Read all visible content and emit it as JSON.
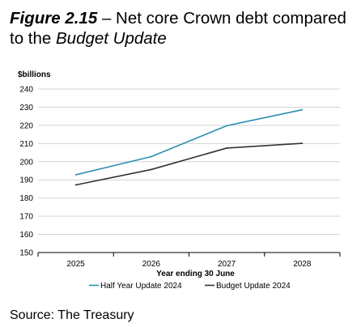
{
  "title": {
    "figure_label": "Figure 2.15",
    "separator": " – Net core Crown debt compared to the ",
    "emphasis": "Budget Update"
  },
  "source": "Source: The Treasury",
  "chart_data": {
    "type": "line",
    "ylabel": "$billions",
    "xlabel": "Year ending 30 June",
    "categories": [
      "2025",
      "2026",
      "2027",
      "2028"
    ],
    "ylim": [
      150,
      240
    ],
    "yticks": [
      240,
      230,
      220,
      210,
      200,
      190,
      180,
      170,
      160,
      150
    ],
    "grid": true,
    "legend_position": "bottom",
    "series": [
      {
        "name": "Half Year Update 2024",
        "values": [
          192.8,
          202.8,
          219.8,
          228.6
        ],
        "color": "#2e8fb0"
      },
      {
        "name": "Budget Update 2024",
        "values": [
          187.2,
          195.7,
          207.5,
          210.1
        ],
        "color": "#333333"
      }
    ]
  }
}
